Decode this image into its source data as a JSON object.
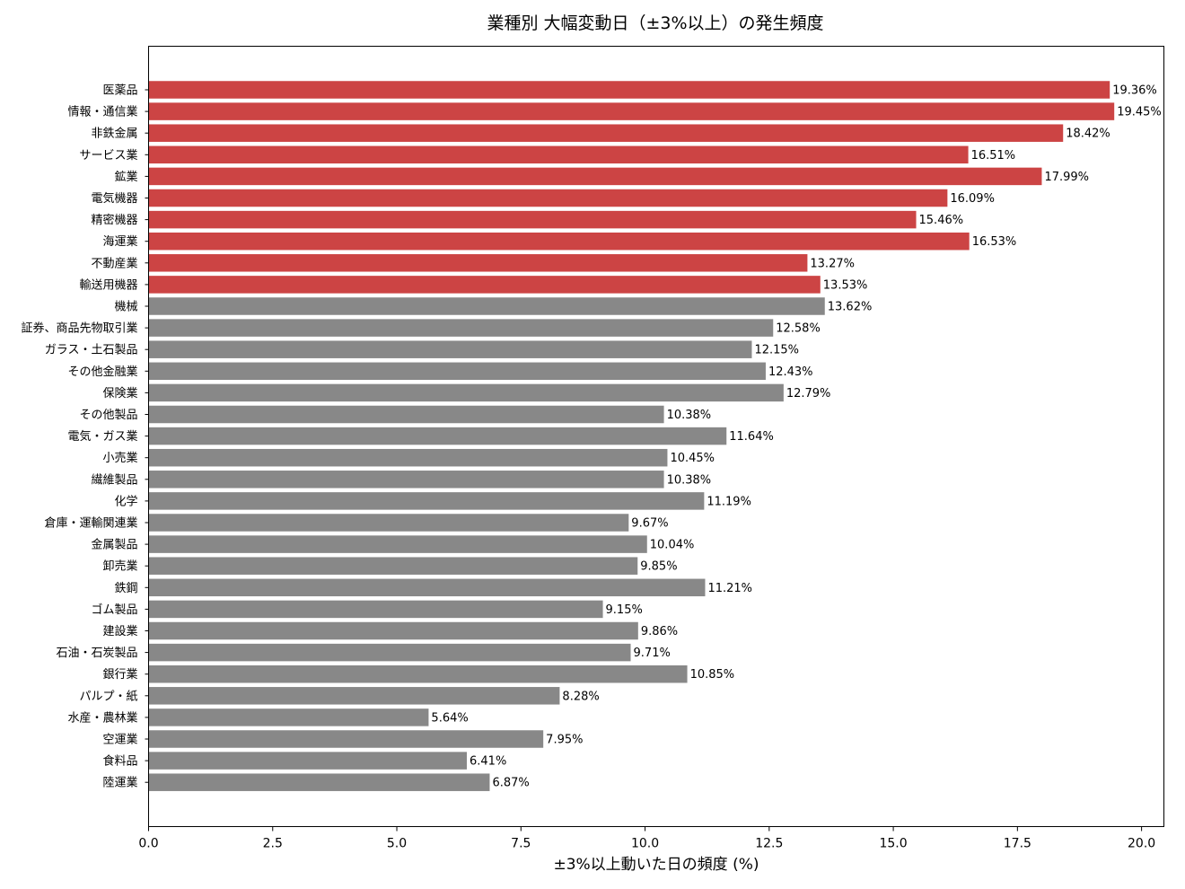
{
  "chart_data": {
    "type": "bar",
    "orientation": "horizontal",
    "title": "業種別 大幅変動日（±3%以上）の発生頻度",
    "xlabel": "±3%以上動いた日の頻度 (%)",
    "ylabel": "",
    "xlim": [
      0,
      20.45
    ],
    "xticks": [
      "0.0",
      "2.5",
      "5.0",
      "7.5",
      "10.0",
      "12.5",
      "15.0",
      "17.5",
      "20.0"
    ],
    "xtick_values": [
      0,
      2.5,
      5,
      7.5,
      10,
      12.5,
      15,
      17.5,
      20
    ],
    "grid": false,
    "legend": "none",
    "value_label_suffix": "%",
    "highlight_color": "#cc4444",
    "base_color": "#888888",
    "categories": [
      "医薬品",
      "情報・通信業",
      "非鉄金属",
      "サービス業",
      "鉱業",
      "電気機器",
      "精密機器",
      "海運業",
      "不動産業",
      "輸送用機器",
      "機械",
      "証券、商品先物取引業",
      "ガラス・土石製品",
      "その他金融業",
      "保険業",
      "その他製品",
      "電気・ガス業",
      "小売業",
      "繊維製品",
      "化学",
      "倉庫・運輸関連業",
      "金属製品",
      "卸売業",
      "鉄鋼",
      "ゴム製品",
      "建設業",
      "石油・石炭製品",
      "銀行業",
      "パルプ・紙",
      "水産・農林業",
      "空運業",
      "食料品",
      "陸運業"
    ],
    "values": [
      19.36,
      19.45,
      18.42,
      16.51,
      17.99,
      16.09,
      15.46,
      16.53,
      13.27,
      13.53,
      13.62,
      12.58,
      12.15,
      12.43,
      12.79,
      10.38,
      11.64,
      10.45,
      10.38,
      11.19,
      9.67,
      10.04,
      9.85,
      11.21,
      9.15,
      9.86,
      9.71,
      10.85,
      8.28,
      5.64,
      7.95,
      6.41,
      6.87
    ],
    "highlighted": [
      true,
      true,
      true,
      true,
      true,
      true,
      true,
      true,
      true,
      true,
      false,
      false,
      false,
      false,
      false,
      false,
      false,
      false,
      false,
      false,
      false,
      false,
      false,
      false,
      false,
      false,
      false,
      false,
      false,
      false,
      false,
      false,
      false
    ]
  }
}
